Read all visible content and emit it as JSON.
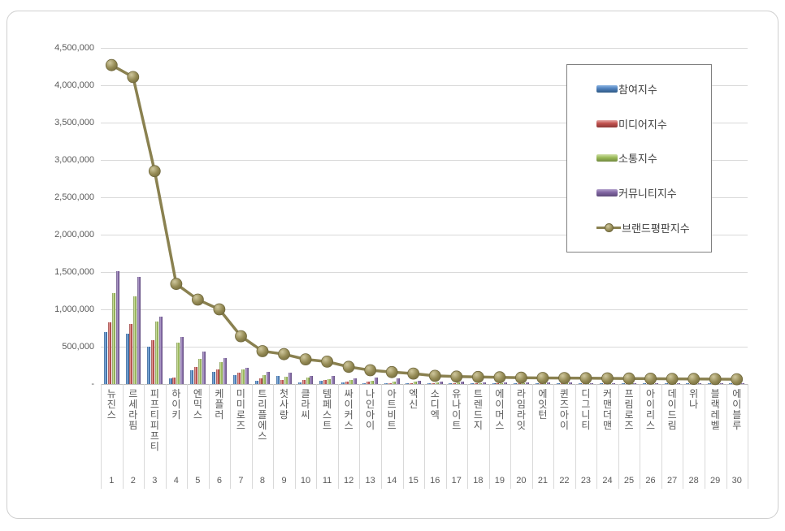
{
  "legend": {
    "entries": [
      {
        "label": "참여지수",
        "type": "bar",
        "color": "#4F81BD",
        "light": "#8CB4E2",
        "dark": "#2E5984"
      },
      {
        "label": "미디어지수",
        "type": "bar",
        "color": "#C0504D",
        "light": "#E6A8A6",
        "dark": "#8C3836"
      },
      {
        "label": "소통지수",
        "type": "bar",
        "color": "#9BBB59",
        "light": "#D0E0A8",
        "dark": "#71893F"
      },
      {
        "label": "커뮤니티지수",
        "type": "bar",
        "color": "#8064A2",
        "light": "#B3A2CC",
        "dark": "#5E4B79"
      },
      {
        "label": "브랜드평판지수",
        "type": "line",
        "color": "#8A8150",
        "light": "#CFC79D",
        "dark": "#6F673B"
      }
    ]
  },
  "y_axis": {
    "tick_labels": [
      "4,500,000",
      "4,000,000",
      "3,500,000",
      "3,000,000",
      "2,500,000",
      "2,000,000",
      "1,500,000",
      "1,000,000",
      "500,000",
      "-"
    ],
    "tick_values": [
      4500000,
      4000000,
      3500000,
      3000000,
      2500000,
      2000000,
      1500000,
      1000000,
      500000,
      0
    ]
  },
  "chart_data": {
    "type": "bar",
    "title": "",
    "xlabel": "",
    "ylabel": "",
    "ylim": [
      0,
      4500000
    ],
    "grid": "horizontal",
    "legend_position": "upper-right-overlay",
    "categories": [
      "뉴진스",
      "르세라핌",
      "피프티피프티",
      "하이키",
      "엔믹스",
      "케플러",
      "미미로즈",
      "트리플에스",
      "첫사랑",
      "클라씨",
      "템페스트",
      "싸이커스",
      "나인아이",
      "아트비트",
      "엑신",
      "소디엑",
      "유나이트",
      "트렌드지",
      "에이머스",
      "라임라잇",
      "에잇턴",
      "퀸즈아이",
      "디그니티",
      "커맨더맨",
      "프림로즈",
      "아이리스",
      "데이드림",
      "위나",
      "블랙레벨",
      "에이블루"
    ],
    "ranks": [
      "1",
      "2",
      "3",
      "4",
      "5",
      "6",
      "7",
      "8",
      "9",
      "10",
      "11",
      "12",
      "13",
      "14",
      "15",
      "16",
      "17",
      "18",
      "19",
      "20",
      "21",
      "22",
      "23",
      "24",
      "25",
      "26",
      "27",
      "28",
      "29",
      "30"
    ],
    "series": [
      {
        "name": "참여지수",
        "color": "#4F81BD",
        "values": [
          695000,
          670000,
          500000,
          80000,
          190000,
          160000,
          115000,
          40000,
          105000,
          25000,
          40000,
          25000,
          10000,
          8000,
          10000,
          8000,
          7000,
          6000,
          6000,
          5000,
          5000,
          5000,
          4000,
          4000,
          4000,
          3000,
          3000,
          3000,
          2000,
          2000
        ]
      },
      {
        "name": "미디어지수",
        "color": "#C0504D",
        "values": [
          830000,
          800000,
          585000,
          90000,
          230000,
          200000,
          150000,
          75000,
          60000,
          60000,
          50000,
          35000,
          35000,
          15000,
          15000,
          12000,
          12000,
          10000,
          10000,
          9000,
          8000,
          8000,
          7000,
          7000,
          6000,
          6000,
          5000,
          5000,
          4000,
          4000
        ]
      },
      {
        "name": "소통지수",
        "color": "#9BBB59",
        "values": [
          1215000,
          1170000,
          840000,
          550000,
          340000,
          290000,
          195000,
          125000,
          95000,
          90000,
          70000,
          50000,
          40000,
          35000,
          28000,
          20000,
          18000,
          16000,
          15000,
          14000,
          13000,
          12000,
          11000,
          10000,
          10000,
          9000,
          9000,
          8000,
          8000,
          7000
        ]
      },
      {
        "name": "커뮤니티지수",
        "color": "#8064A2",
        "values": [
          1510000,
          1430000,
          905000,
          630000,
          430000,
          350000,
          215000,
          160000,
          150000,
          110000,
          105000,
          75000,
          85000,
          80000,
          42000,
          30000,
          28000,
          25000,
          22000,
          20000,
          18000,
          17000,
          16000,
          15000,
          14000,
          13000,
          12000,
          11000,
          10000,
          9000
        ]
      }
    ],
    "line_series": {
      "name": "브랜드평판지수",
      "color": "#8A8150",
      "values": [
        4270000,
        4110000,
        2850000,
        1340000,
        1130000,
        1000000,
        640000,
        440000,
        400000,
        330000,
        300000,
        230000,
        185000,
        160000,
        140000,
        110000,
        100000,
        95000,
        90000,
        85000,
        82000,
        80000,
        78000,
        76000,
        74000,
        72000,
        70000,
        68000,
        66000,
        64000
      ]
    }
  }
}
